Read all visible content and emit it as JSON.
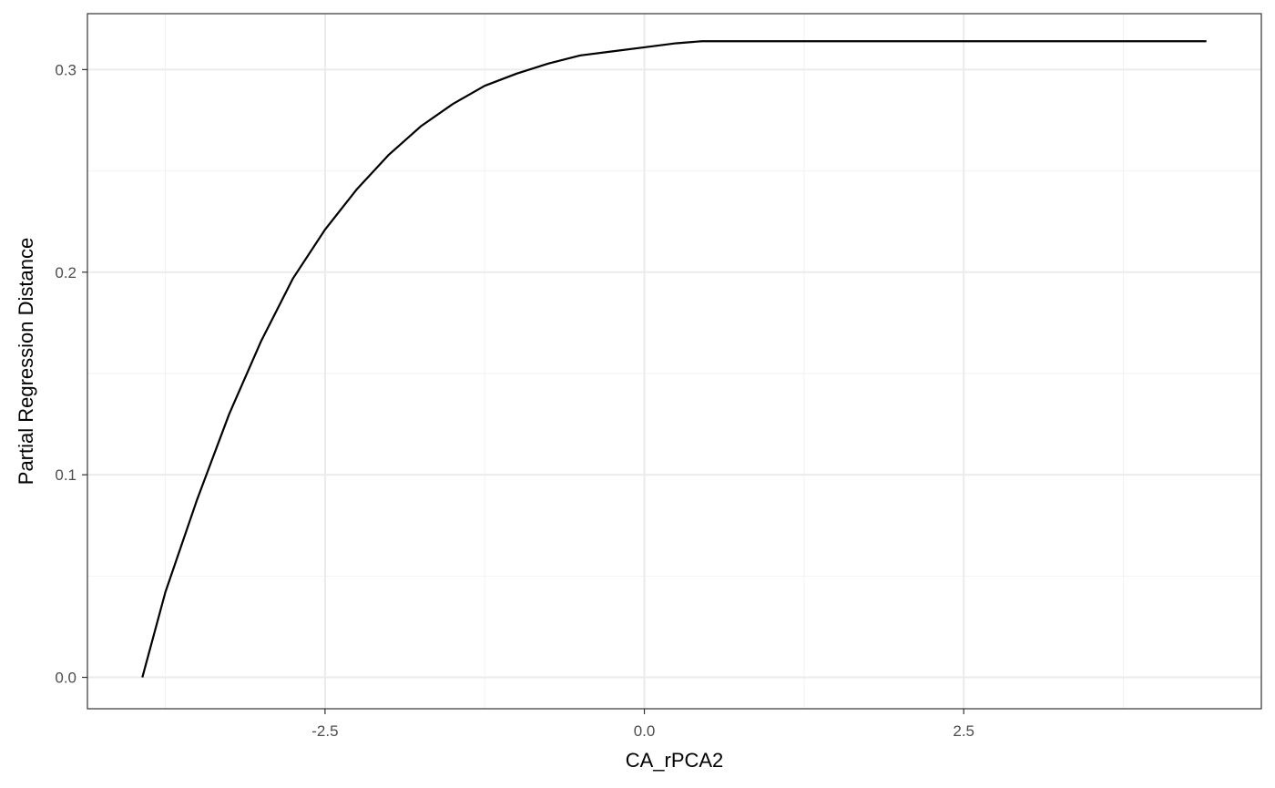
{
  "chart_data": {
    "type": "line",
    "xlabel": "CA_rPCA2",
    "ylabel": "Partial Regression Distance",
    "xlim": [
      -4.36,
      4.83
    ],
    "ylim": [
      -0.0155,
      0.3276
    ],
    "x_major_ticks": [
      -2.5,
      0.0,
      2.5
    ],
    "x_tick_labels": [
      "-2.5",
      "0.0",
      "2.5"
    ],
    "x_minor_ticks": [
      -3.75,
      -1.25,
      1.25,
      3.75
    ],
    "y_major_ticks": [
      0.0,
      0.1,
      0.2,
      0.3
    ],
    "y_tick_labels": [
      "0.0",
      "0.1",
      "0.2",
      "0.3"
    ],
    "y_minor_ticks": [
      0.05,
      0.15,
      0.25
    ],
    "grid": true,
    "line_color": "#000000",
    "series": [
      {
        "x": [
          -3.93,
          -3.75,
          -3.5,
          -3.25,
          -3.0,
          -2.75,
          -2.5,
          -2.25,
          -2.0,
          -1.75,
          -1.5,
          -1.25,
          -1.0,
          -0.75,
          -0.5,
          -0.25,
          0.0,
          0.25,
          0.45,
          1.0,
          2.0,
          3.0,
          4.0,
          4.4
        ],
        "y": [
          0.0,
          0.042,
          0.088,
          0.13,
          0.166,
          0.197,
          0.221,
          0.241,
          0.258,
          0.272,
          0.283,
          0.292,
          0.298,
          0.303,
          0.307,
          0.309,
          0.311,
          0.313,
          0.314,
          0.314,
          0.314,
          0.314,
          0.314,
          0.314
        ]
      }
    ]
  }
}
